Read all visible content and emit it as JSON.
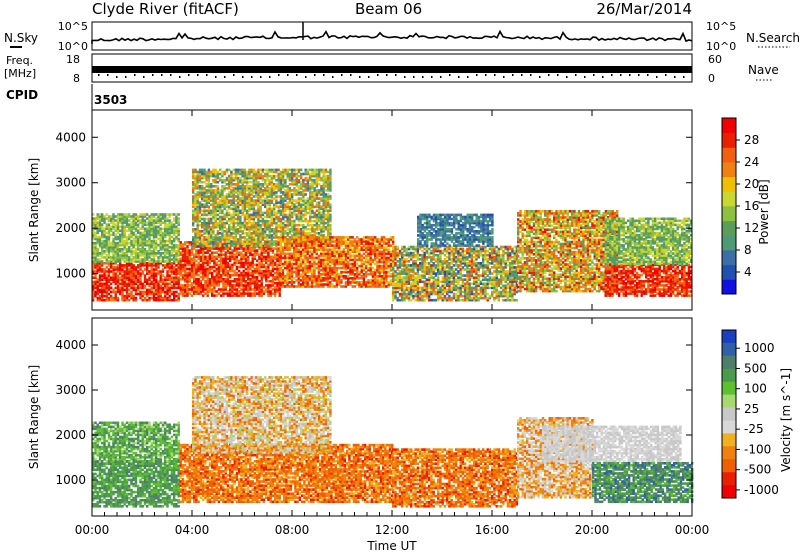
{
  "header": {
    "title": "Clyde River (fitACF)",
    "beam": "Beam 06",
    "date": "26/Mar/2014"
  },
  "top_panels": {
    "nsky_label": "N.Sky",
    "nsky_ticks": [
      "10^5",
      "10^0"
    ],
    "nsearch_label": "N.Search",
    "nsearch_ticks": [
      "10^5",
      "10^0"
    ],
    "freq_label": "Freq.",
    "freq_unit": "[MHz]",
    "freq_ticks": [
      "18",
      "8"
    ],
    "nave_label": "Nave",
    "nave_ticks": [
      "60",
      "0"
    ],
    "cpid_label": "CPID",
    "cpid_value": "3503"
  },
  "colors": {
    "power": [
      "#1010e0",
      "#2050b0",
      "#3c6ea8",
      "#4e9a74",
      "#5a9e5a",
      "#8cc040",
      "#c8d830",
      "#f0c000",
      "#f08010",
      "#f06010",
      "#e82000",
      "#f00000"
    ],
    "velocity": [
      "#1840c0",
      "#3060a8",
      "#4f7d6b",
      "#4c9a4c",
      "#5cc030",
      "#a8d870",
      "#c8c8c8",
      "#d8d8d8",
      "#f0b020",
      "#f08010",
      "#f06000",
      "#e82000",
      "#f00000"
    ]
  },
  "chart_data": [
    {
      "type": "heatmap",
      "quantity": "power",
      "ylabel": "Slant Range [km]",
      "yticks": [
        1000,
        2000,
        3000,
        4000
      ],
      "ylim": [
        200,
        4600
      ],
      "colorbar_label": "Power [dB]",
      "colorbar_ticks": [
        "4",
        "8",
        "12",
        "16",
        "20",
        "24",
        "28"
      ],
      "colorbar_range": [
        0,
        30
      ],
      "features": [
        {
          "t0": 0.0,
          "t1": 3.5,
          "r0": 400,
          "r1": 1250,
          "v0": 22,
          "v1": 30
        },
        {
          "t0": 0.0,
          "t1": 3.5,
          "r0": 1250,
          "r1": 2300,
          "v0": 8,
          "v1": 18
        },
        {
          "t0": 3.5,
          "t1": 7.5,
          "r0": 500,
          "r1": 1700,
          "v0": 20,
          "v1": 30
        },
        {
          "t0": 4.0,
          "t1": 9.5,
          "r0": 1600,
          "r1": 3300,
          "v0": 6,
          "v1": 24
        },
        {
          "t0": 7.5,
          "t1": 12.0,
          "r0": 700,
          "r1": 1800,
          "v0": 18,
          "v1": 28
        },
        {
          "t0": 12.0,
          "t1": 17.0,
          "r0": 400,
          "r1": 1600,
          "v0": 4,
          "v1": 26
        },
        {
          "t0": 13.0,
          "t1": 16.0,
          "r0": 1600,
          "r1": 2300,
          "v0": 4,
          "v1": 10
        },
        {
          "t0": 17.0,
          "t1": 21.0,
          "r0": 600,
          "r1": 2400,
          "v0": 10,
          "v1": 28
        },
        {
          "t0": 20.5,
          "t1": 24.0,
          "r0": 500,
          "r1": 1200,
          "v0": 22,
          "v1": 30
        },
        {
          "t0": 20.5,
          "t1": 24.0,
          "r0": 1200,
          "r1": 2200,
          "v0": 8,
          "v1": 18
        }
      ]
    },
    {
      "type": "heatmap",
      "quantity": "velocity",
      "ylabel": "Slant Range [km]",
      "xlabel": "Time UT",
      "xticks": [
        "00:00",
        "04:00",
        "08:00",
        "12:00",
        "16:00",
        "20:00",
        "00:00"
      ],
      "xlim": [
        0,
        24
      ],
      "yticks": [
        1000,
        2000,
        3000,
        4000
      ],
      "ylim": [
        200,
        4600
      ],
      "colorbar_label": "Velocity [m s^-1]",
      "colorbar_ticks": [
        "1000",
        "500",
        "100",
        "25",
        "-25",
        "-100",
        "-500",
        "-1000"
      ],
      "features": [
        {
          "t0": 0.0,
          "t1": 3.5,
          "r0": 400,
          "r1": 1400,
          "v0": 2,
          "v1": 4
        },
        {
          "t0": 0.0,
          "t1": 3.5,
          "r0": 1400,
          "r1": 2300,
          "v0": 2,
          "v1": 5
        },
        {
          "t0": 3.5,
          "t1": 12.0,
          "r0": 500,
          "r1": 1800,
          "v0": 8,
          "v1": 11
        },
        {
          "t0": 4.0,
          "t1": 9.5,
          "r0": 1600,
          "r1": 3300,
          "v0": 5,
          "v1": 10
        },
        {
          "t0": 12.0,
          "t1": 17.0,
          "r0": 400,
          "r1": 1700,
          "v0": 8,
          "v1": 11
        },
        {
          "t0": 17.0,
          "t1": 20.0,
          "r0": 600,
          "r1": 2400,
          "v0": 6,
          "v1": 10
        },
        {
          "t0": 18.0,
          "t1": 23.5,
          "r0": 1400,
          "r1": 2200,
          "v0": 6,
          "v1": 7
        },
        {
          "t0": 20.0,
          "t1": 24.0,
          "r0": 500,
          "r1": 1400,
          "v0": 1,
          "v1": 4
        }
      ]
    }
  ]
}
